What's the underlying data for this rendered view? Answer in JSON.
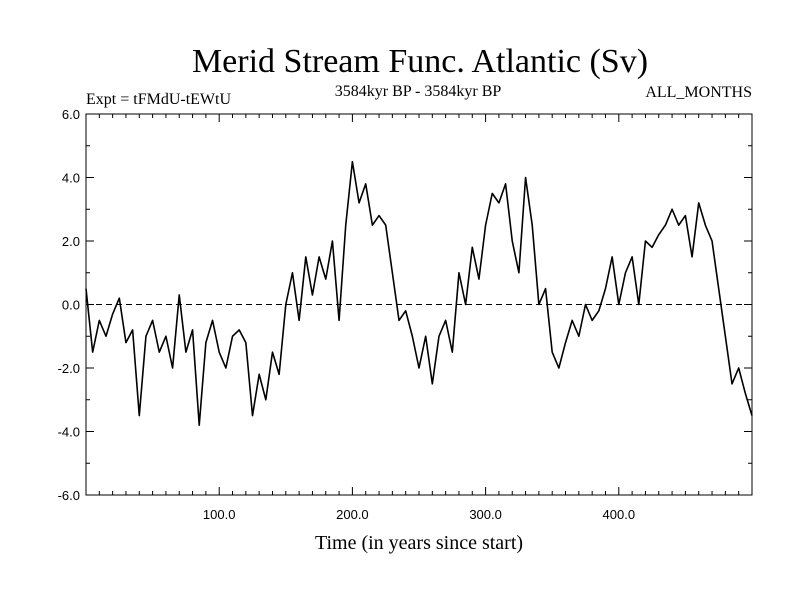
{
  "chart_data": {
    "type": "line",
    "title": "Merid Stream Func. Atlantic (Sv)",
    "subtitle_left": "Expt = tFMdU-tEWtU",
    "subtitle_center": "3584kyr BP - 3584kyr BP",
    "subtitle_right": "ALL_MONTHS",
    "xlabel": "Time (in years since start)",
    "ylabel": "",
    "xlim": [
      0,
      500
    ],
    "ylim": [
      -6,
      6
    ],
    "xticks": [
      100,
      200,
      300,
      400
    ],
    "xtick_labels": [
      "100.0",
      "200.0",
      "300.0",
      "400.0"
    ],
    "yticks": [
      6,
      4,
      2,
      0,
      -2,
      -4,
      -6
    ],
    "ytick_labels": [
      "6.0",
      "4.0",
      "2.0",
      "0.0",
      "-2.0",
      "-4.0",
      "-6.0"
    ],
    "reference_line": 0,
    "series": [
      {
        "name": "Merid Stream Func. Atlantic",
        "x": [
          0,
          5,
          10,
          15,
          20,
          25,
          30,
          35,
          40,
          45,
          50,
          55,
          60,
          65,
          70,
          75,
          80,
          85,
          90,
          95,
          100,
          105,
          110,
          115,
          120,
          125,
          130,
          135,
          140,
          145,
          150,
          155,
          160,
          165,
          170,
          175,
          180,
          185,
          190,
          195,
          200,
          205,
          210,
          215,
          220,
          225,
          230,
          235,
          240,
          245,
          250,
          255,
          260,
          265,
          270,
          275,
          280,
          285,
          290,
          295,
          300,
          305,
          310,
          315,
          320,
          325,
          330,
          335,
          340,
          345,
          350,
          355,
          360,
          365,
          370,
          375,
          380,
          385,
          390,
          395,
          400,
          405,
          410,
          415,
          420,
          425,
          430,
          435,
          440,
          445,
          450,
          455,
          460,
          465,
          470,
          475,
          480,
          485,
          490,
          495,
          500
        ],
        "values": [
          0.5,
          -1.5,
          -0.5,
          -1.0,
          -0.3,
          0.2,
          -1.2,
          -0.8,
          -3.5,
          -1.0,
          -0.5,
          -1.5,
          -1.0,
          -2.0,
          0.3,
          -1.5,
          -0.8,
          -3.8,
          -1.2,
          -0.5,
          -1.5,
          -2.0,
          -1.0,
          -0.8,
          -1.2,
          -3.5,
          -2.2,
          -3.0,
          -1.5,
          -2.2,
          0.0,
          1.0,
          -0.5,
          1.5,
          0.3,
          1.5,
          0.8,
          2.0,
          -0.5,
          2.5,
          4.5,
          3.2,
          3.8,
          2.5,
          2.8,
          2.5,
          1.0,
          -0.5,
          -0.2,
          -1.0,
          -2.0,
          -1.0,
          -2.5,
          -1.0,
          -0.5,
          -1.5,
          1.0,
          0.0,
          1.8,
          0.8,
          2.5,
          3.5,
          3.2,
          3.8,
          2.0,
          1.0,
          4.0,
          2.5,
          0.0,
          0.5,
          -1.5,
          -2.0,
          -1.2,
          -0.5,
          -1.0,
          0.0,
          -0.5,
          -0.2,
          0.5,
          1.5,
          0.0,
          1.0,
          1.5,
          0.0,
          2.0,
          1.8,
          2.2,
          2.5,
          3.0,
          2.5,
          2.8,
          1.5,
          3.2,
          2.5,
          2.0,
          0.5,
          -1.0,
          -2.5,
          -2.0,
          -2.8,
          -3.5
        ]
      }
    ]
  }
}
